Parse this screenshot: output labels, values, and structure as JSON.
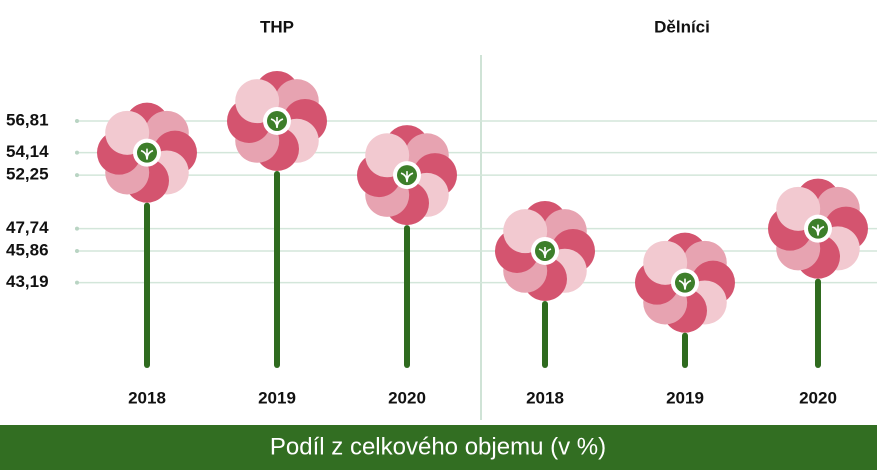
{
  "chart_data": {
    "type": "pictogram",
    "xlabel": "Podíl z celkového objemu (v %)",
    "categories": [
      "2018",
      "2019",
      "2020"
    ],
    "series": [
      {
        "name": "THP",
        "color": "#d4546f",
        "values": [
          54.14,
          56.81,
          52.25
        ]
      },
      {
        "name": "Dělníci",
        "color": "#d4546f",
        "values": [
          45.86,
          43.19,
          47.74
        ]
      }
    ],
    "ylim": [
      36,
      67
    ],
    "yticks": [
      {
        "value": 56.81,
        "label": "56,81"
      },
      {
        "value": 54.14,
        "label": "54,14"
      },
      {
        "value": 52.25,
        "label": "52,25"
      },
      {
        "value": 47.74,
        "label": "47,74"
      },
      {
        "value": 45.86,
        "label": "45,86"
      },
      {
        "value": 43.19,
        "label": "43,19"
      }
    ],
    "grid": true
  }
}
